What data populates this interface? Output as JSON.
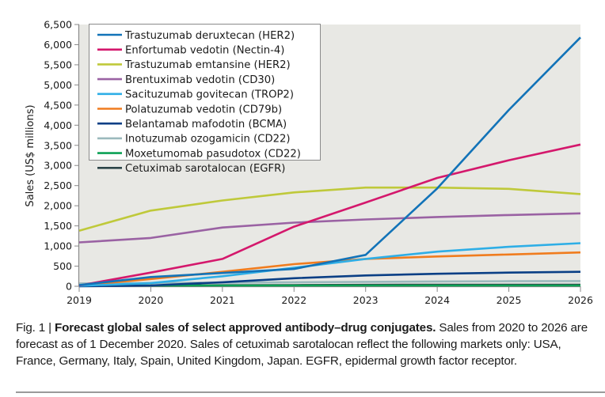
{
  "chart_data": {
    "type": "line",
    "title": "",
    "xlabel": "",
    "ylabel": "Sales (US$ millions)",
    "x": [
      2019,
      2020,
      2021,
      2022,
      2023,
      2024,
      2025,
      2026
    ],
    "xlim": [
      2019,
      2026
    ],
    "ylim": [
      0,
      6500
    ],
    "yticks": [
      0,
      500,
      1000,
      1500,
      2000,
      2500,
      3000,
      3500,
      4000,
      4500,
      5000,
      5500,
      6000,
      6500
    ],
    "ytick_labels": [
      "0",
      "500",
      "1,000",
      "1,500",
      "2,000",
      "2,500",
      "3,000",
      "3,500",
      "4,000",
      "4,500",
      "5,000",
      "5,500",
      "6,000",
      "6,500"
    ],
    "xtick_labels": [
      "2019",
      "2020",
      "2021",
      "2022",
      "2023",
      "2024",
      "2025",
      "2026"
    ],
    "grid": false,
    "background": "#e8e8e4",
    "legend_position": "top-left",
    "series": [
      {
        "name": "Trastuzumab deruxtecan (HER2)",
        "color": "#1273b8",
        "values": [
          30,
          230,
          330,
          430,
          780,
          2430,
          4380,
          6180
        ]
      },
      {
        "name": "Enfortumab vedotin (Nectin-4)",
        "color": "#d4186c",
        "values": [
          20,
          340,
          680,
          1480,
          2080,
          2690,
          3130,
          3520
        ]
      },
      {
        "name": "Trastuzumab emtansine (HER2)",
        "color": "#bfc93a",
        "values": [
          1380,
          1880,
          2130,
          2330,
          2450,
          2450,
          2420,
          2290
        ]
      },
      {
        "name": "Brentuximab vedotin (CD30)",
        "color": "#9a62a3",
        "values": [
          1090,
          1200,
          1460,
          1580,
          1660,
          1720,
          1770,
          1810
        ]
      },
      {
        "name": "Sacituzumab govitecan (TROP2)",
        "color": "#2eaee6",
        "values": [
          10,
          80,
          250,
          460,
          680,
          860,
          980,
          1070
        ]
      },
      {
        "name": "Polatuzumab vedotin (CD79b)",
        "color": "#f07c1e",
        "values": [
          20,
          180,
          360,
          550,
          680,
          740,
          790,
          840
        ]
      },
      {
        "name": "Belantamab mafodotin (BCMA)",
        "color": "#0a3f85",
        "values": [
          0,
          20,
          100,
          200,
          270,
          310,
          340,
          360
        ]
      },
      {
        "name": "Inotuzumab ozogamicin (CD22)",
        "color": "#9bb9bd",
        "values": [
          70,
          80,
          90,
          100,
          110,
          120,
          125,
          130
        ]
      },
      {
        "name": "Moxetumomab pasudotox (CD22)",
        "color": "#0ca155",
        "values": [
          20,
          20,
          20,
          20,
          20,
          20,
          20,
          20
        ]
      },
      {
        "name": "Cetuximab sarotalocan (EGFR)",
        "color": "#2c4448",
        "values": [
          null,
          20,
          25,
          30,
          35,
          40,
          40,
          40
        ]
      }
    ]
  },
  "caption": {
    "prefix": "Fig. 1 | ",
    "title": "Forecast global sales of select approved antibody–drug conjugates.",
    "body": " Sales from 2020 to 2026 are forecast as of 1 December 2020. Sales of cetuximab sarotalocan reflect the following markets only: USA, France, Germany, Italy, Spain, United Kingdom, Japan. EGFR, epidermal growth factor receptor."
  }
}
